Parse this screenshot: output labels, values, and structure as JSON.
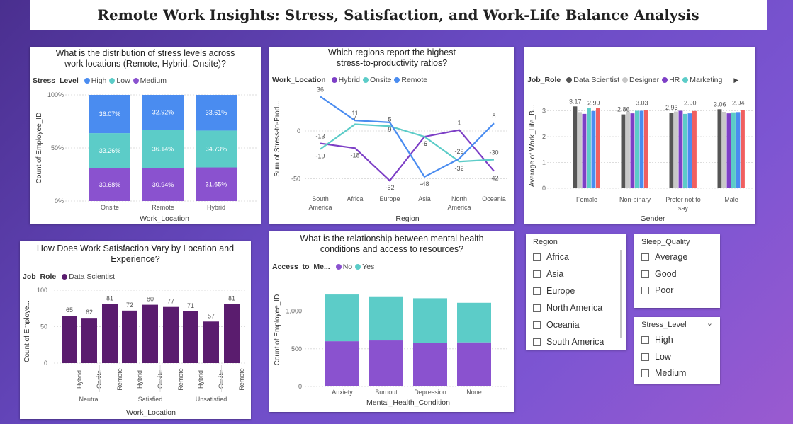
{
  "title": "Remote Work Insights: Stress, Satisfaction, and Work-Life Balance Analysis",
  "colors": {
    "high": "#4a8cf0",
    "low": "#5cccc8",
    "medium": "#8a52cf",
    "hybrid": "#7d3fc6",
    "onsite": "#5cccc8",
    "remote": "#4a8cf0",
    "data_scientist": "#555555",
    "designer": "#c8c8c8",
    "hr": "#7d3fc6",
    "marketing": "#5cccc8",
    "extra": "#4a8cf0",
    "extra2": "#f06060",
    "ds_bar": "#5a1c6e",
    "no": "#8a52cf",
    "yes": "#5cccc8"
  },
  "charts": {
    "stress": {
      "title": "What is the distribution of stress levels across work locations (Remote, Hybrid, Onsite)?",
      "legend_title": "Stress_Level",
      "legend": [
        "High",
        "Low",
        "Medium"
      ],
      "ylabel": "Count of Employee_ID",
      "xlabel": "Work_Location",
      "yticks": [
        "100%",
        "50%",
        "0%"
      ]
    },
    "regions": {
      "title": "Which regions report the highest stress-to-productivity ratios?",
      "legend_title": "Work_Location",
      "legend": [
        "Hybrid",
        "Onsite",
        "Remote"
      ],
      "ylabel": "Sum of Stress-to-Prod...",
      "xlabel": "Region",
      "yticks": [
        "0",
        "-50"
      ]
    },
    "worklife": {
      "title": "",
      "legend_title": "Job_Role",
      "legend": [
        "Data Scientist",
        "Designer",
        "HR",
        "Marketing"
      ],
      "ylabel": "Average of Work_Life_B...",
      "xlabel": "Gender",
      "yticks": [
        "3",
        "2",
        "1",
        "0"
      ]
    },
    "satisfaction": {
      "title": "How Does Work Satisfaction Vary by Location and Experience?",
      "legend_title": "Job_Role",
      "legend": [
        "Data Scientist"
      ],
      "ylabel": "Count of Employe...",
      "xlabel": "Work_Location",
      "yticks": [
        "100",
        "50",
        "0"
      ]
    },
    "mental": {
      "title": "What is the relationship between mental health conditions and access to resources?",
      "legend_title": "Access_to_Me...",
      "legend": [
        "No",
        "Yes"
      ],
      "ylabel": "Count of Employee_ID",
      "xlabel": "Mental_Health_Condition",
      "yticks": [
        "1,000",
        "500",
        "0"
      ]
    }
  },
  "chart_data": [
    {
      "type": "bar",
      "title": "What is the distribution of stress levels across work locations (Remote, Hybrid, Onsite)?",
      "categories": [
        "Onsite",
        "Remote",
        "Hybrid"
      ],
      "series": [
        {
          "name": "Medium",
          "values": [
            30.68,
            30.94,
            31.65
          ],
          "labels": [
            "30.68%",
            "30.94%",
            "31.65%"
          ]
        },
        {
          "name": "Low",
          "values": [
            33.26,
            36.14,
            34.73
          ],
          "labels": [
            "33.26%",
            "36.14%",
            "34.73%"
          ]
        },
        {
          "name": "High",
          "values": [
            36.07,
            32.92,
            33.61
          ],
          "labels": [
            "36.07%",
            "32.92%",
            "33.61%"
          ]
        }
      ],
      "xlabel": "Work_Location",
      "ylabel": "Count of Employee_ID",
      "ylim": [
        0,
        100
      ]
    },
    {
      "type": "line",
      "title": "Which regions report the highest stress-to-productivity ratios?",
      "categories": [
        "South America",
        "Africa",
        "Europe",
        "Asia",
        "North America",
        "Oceania"
      ],
      "series": [
        {
          "name": "Hybrid",
          "values": [
            -13,
            -18,
            -52,
            -6,
            1,
            -42
          ]
        },
        {
          "name": "Onsite",
          "values": [
            -19,
            7,
            5,
            -6,
            -32,
            -30
          ]
        },
        {
          "name": "Remote",
          "values": [
            36,
            11,
            9,
            -48,
            -29,
            8
          ]
        }
      ],
      "xlabel": "Region",
      "ylabel": "Sum of Stress-to-Prod...",
      "ylim": [
        -65,
        45
      ]
    },
    {
      "type": "bar",
      "categories": [
        "Female",
        "Non-binary",
        "Prefer not to say",
        "Male"
      ],
      "series": [
        {
          "name": "Data Scientist",
          "values": [
            3.17,
            2.86,
            2.93,
            3.06
          ]
        },
        {
          "name": "Designer",
          "values": [
            2.95,
            2.97,
            2.97,
            2.96
          ]
        },
        {
          "name": "HR",
          "values": [
            2.88,
            2.9,
            3.0,
            2.9
          ]
        },
        {
          "name": "Marketing",
          "values": [
            3.1,
            3.0,
            2.88,
            2.94
          ]
        },
        {
          "name": "",
          "values": [
            2.99,
            3.0,
            2.9,
            2.95
          ]
        },
        {
          "name": "",
          "values": [
            3.12,
            3.03,
            2.99,
            3.04
          ]
        }
      ],
      "labels": [
        [
          "3.17",
          "2.99"
        ],
        [
          "2.86",
          "3.03"
        ],
        [
          "2.93",
          "2.90"
        ],
        [
          "3.06",
          "2.94"
        ]
      ],
      "xlabel": "Gender",
      "ylabel": "Average of Work_Life_B...",
      "ylim": [
        0,
        3.6
      ]
    },
    {
      "type": "bar",
      "title": "How Does Work Satisfaction Vary by Location and Experience?",
      "groups": [
        "Neutral",
        "Satisfied",
        "Unsatisfied"
      ],
      "categories": [
        "Hybrid",
        "Onsite",
        "Remote",
        "Hybrid",
        "Onsite",
        "Remote",
        "Hybrid",
        "Onsite",
        "Remote"
      ],
      "series": [
        {
          "name": "Data Scientist",
          "values": [
            65,
            62,
            81,
            72,
            80,
            77,
            71,
            57,
            81
          ]
        }
      ],
      "xlabel": "Work_Location",
      "ylabel": "Count of Employe...",
      "ylim": [
        0,
        100
      ]
    },
    {
      "type": "bar",
      "title": "What is the relationship between mental health conditions and access to resources?",
      "categories": [
        "Anxiety",
        "Burnout",
        "Depression",
        "None"
      ],
      "series": [
        {
          "name": "No",
          "values": [
            600,
            610,
            580,
            585
          ]
        },
        {
          "name": "Yes",
          "values": [
            620,
            585,
            590,
            525
          ]
        }
      ],
      "xlabel": "Mental_Health_Condition",
      "ylabel": "Count of Employee_ID",
      "ylim": [
        0,
        1300
      ]
    }
  ],
  "slicers": {
    "region": {
      "header": "Region",
      "options": [
        "Africa",
        "Asia",
        "Europe",
        "North America",
        "Oceania",
        "South America"
      ]
    },
    "sleep": {
      "header": "Sleep_Quality",
      "options": [
        "Average",
        "Good",
        "Poor"
      ]
    },
    "stress": {
      "header": "Stress_Level",
      "options": [
        "High",
        "Low",
        "Medium"
      ]
    }
  }
}
